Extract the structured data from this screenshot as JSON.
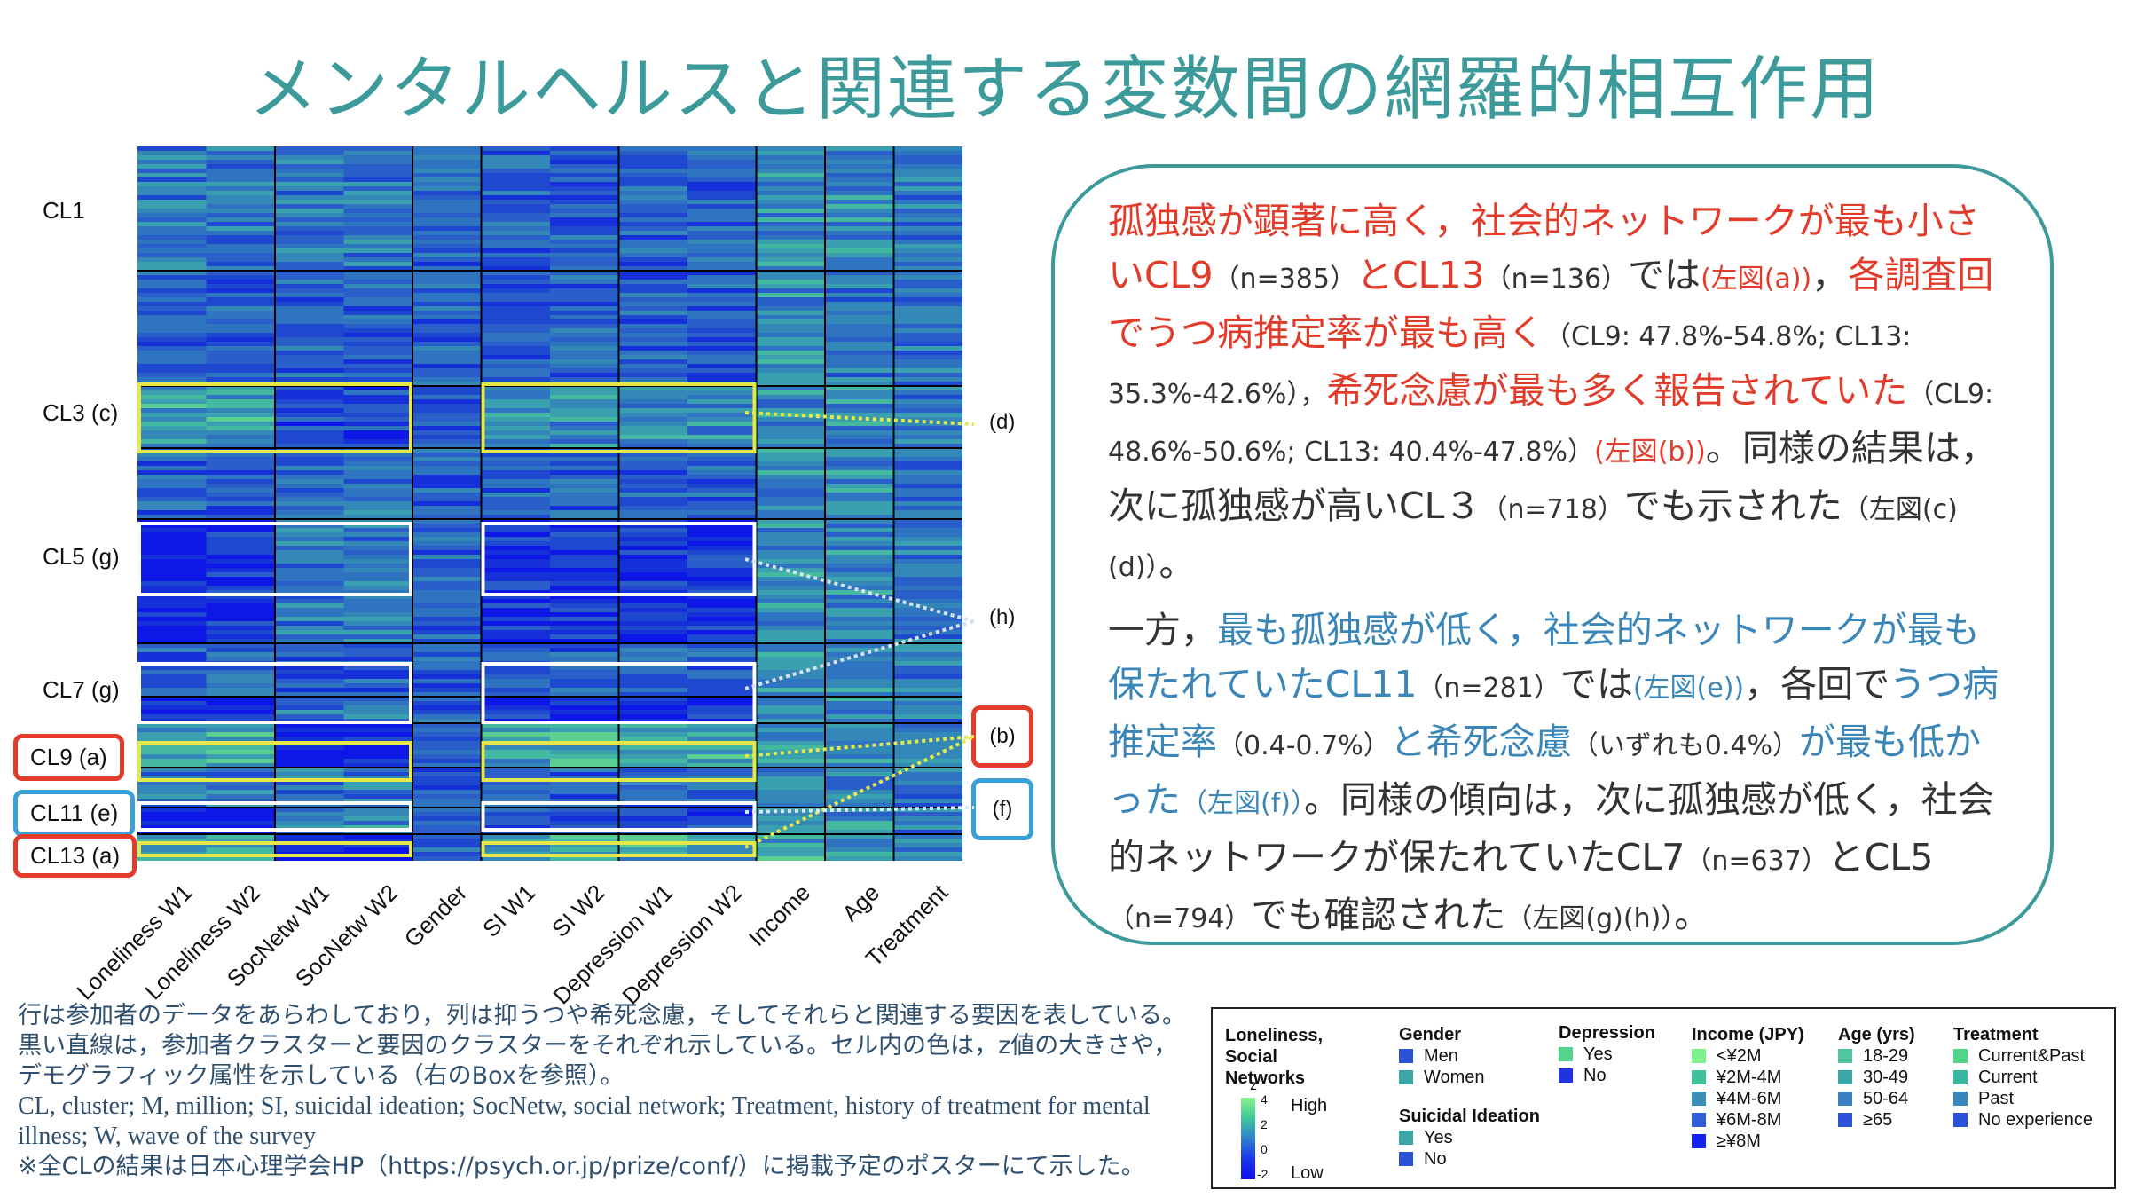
{
  "title": "メンタルヘルスと関連する変数間の網羅的相互作用",
  "row_labels": {
    "cl1": "CL1",
    "cl3": "CL3 (c)",
    "cl5": "CL5 (g)",
    "cl7": "CL7 (g)",
    "cl9": "CL9 (a)",
    "cl11": "CL11 (e)",
    "cl13": "CL13 (a)"
  },
  "side_labels": {
    "d": "(d)",
    "h": "(h)",
    "b": "(b)",
    "f": "(f)"
  },
  "columns": [
    "Loneliness W1",
    "Loneliness W2",
    "SocNetw W1",
    "SocNetw W2",
    "Gender",
    "SI W1",
    "SI W2",
    "Depression W1",
    "Depression W2",
    "Income",
    "Age",
    "Treatment"
  ],
  "colors": {
    "title": "#3d9a9a",
    "red": "#e23b2a",
    "blue": "#3a86b8",
    "highlight_yellow": "#e6e84a",
    "frame_teal": "#3d9a9a"
  },
  "textbox": {
    "p1_s1": "孤独感が顕著に高く，社会的ネットワークが最も小さいCL9",
    "p1_s2": "（n=385）",
    "p1_s3": "とCL13",
    "p1_s4": "（n=136）",
    "p1_s5": "では",
    "p1_s6": "(左図(a))",
    "p1_s7": "，",
    "p1_s8": "各調査回でうつ病推定率が最も高く",
    "p1_s9": "（CL9: 47.8%-54.8%; CL13: 35.3%-42.6%），",
    "p1_s10": "希死念慮が最も多く報告されていた",
    "p1_s11": "（CL9: 48.6%-50.6%; CL13: 40.4%-47.8%）",
    "p1_s12": "(左図(b))",
    "p1_s13": "。同様の結果は，次に孤独感が高いCL３",
    "p1_s14": "（n=718）",
    "p1_s15": "でも示された",
    "p1_s16": "（左図(c)(d)）",
    "p1_s17": "。",
    "p2_s1": "一方，",
    "p2_s2": "最も孤独感が低く，社会的ネットワークが最も保たれていたCL11",
    "p2_s3": "（n=281）",
    "p2_s4": "では",
    "p2_s5": "(左図(e))",
    "p2_s6": "，各回で",
    "p2_s7": "うつ病推定率",
    "p2_s8": "（0.4-0.7%）",
    "p2_s9": "と希死念慮",
    "p2_s10": "（いずれも0.4%）",
    "p2_s11": "が最も低かった",
    "p2_s12": "（左図(f)）",
    "p2_s13": "。同様の傾向は，次に孤独感が低く，社会的ネットワークが保たれていたCL7",
    "p2_s14": "（n=637）",
    "p2_s15": "とCL5",
    "p2_s16": "（n=794）",
    "p2_s17": "でも確認された",
    "p2_s18": "（左図(g)(h)）",
    "p2_s19": "。"
  },
  "notes": {
    "line1": "行は参加者のデータをあらわしており，列は抑うつや希死念慮，そしてそれらと関連する要因を表している。黒い直線は，参加者クラスターと要因のクラスターをそれぞれ示している。セル内の色は，z値の大きさや，デモグラフィック属性を示している（右のBoxを参照）。",
    "line2": "CL, cluster; M, million; SI, suicidal ideation; SocNetw, social network; Treatment, history of treatment for mental illness; W, wave of the survey",
    "line3": "※全CLの結果は日本心理学会HP（https://psych.or.jp/prize/conf/）に掲載予定のポスターにて示した。"
  },
  "legend": {
    "loneliness_title": "Loneliness, Social Networks",
    "z_label": "z",
    "z_max": "4",
    "z_mid_hi": "2",
    "z_mid": "0",
    "z_min": "-2",
    "high": "High",
    "low": "Low",
    "gender_title": "Gender",
    "gender": [
      {
        "label": "Men",
        "color": "#2a52d6"
      },
      {
        "label": "Women",
        "color": "#3aa7a6"
      }
    ],
    "si_title": "Suicidal Ideation",
    "si": [
      {
        "label": "Yes",
        "color": "#3aa7a6"
      },
      {
        "label": "No",
        "color": "#2a52d6"
      }
    ],
    "depression_title": "Depression",
    "depression": [
      {
        "label": "Yes",
        "color": "#52d48a"
      },
      {
        "label": "No",
        "color": "#1f34e0"
      }
    ],
    "income_title": "Income (JPY)",
    "income": [
      {
        "label": "<¥2M",
        "color": "#7ff08a"
      },
      {
        "label": "¥2M-4M",
        "color": "#3fc29a"
      },
      {
        "label": "¥4M-6M",
        "color": "#3a8fb8"
      },
      {
        "label": "¥6M-8M",
        "color": "#2f5ed8"
      },
      {
        "label": "≥¥8M",
        "color": "#1422f0"
      }
    ],
    "age_title": "Age (yrs)",
    "age": [
      {
        "label": "18-29",
        "color": "#4fc79a"
      },
      {
        "label": "30-49",
        "color": "#3aa7a6"
      },
      {
        "label": "50-64",
        "color": "#3a7fc0"
      },
      {
        "label": "≥65",
        "color": "#2a52d6"
      }
    ],
    "treatment_title": "Treatment",
    "treatment": [
      {
        "label": "Current&Past",
        "color": "#52d48a"
      },
      {
        "label": "Current",
        "color": "#3ab5a0"
      },
      {
        "label": "Past",
        "color": "#3a86b8"
      },
      {
        "label": "No experience",
        "color": "#2a52d6"
      }
    ]
  }
}
